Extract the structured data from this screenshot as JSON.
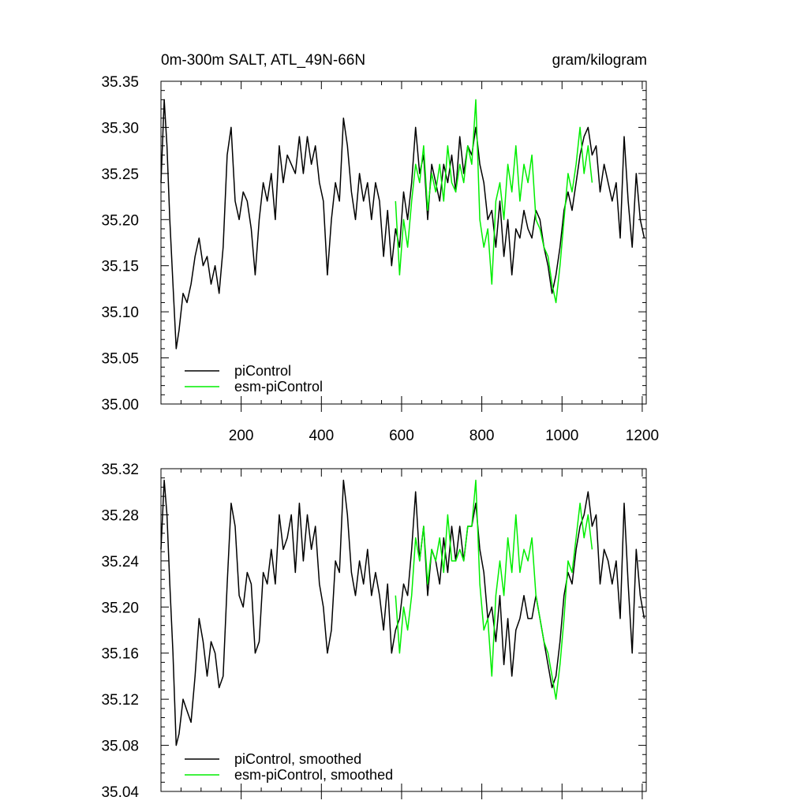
{
  "chart_data": [
    {
      "type": "line",
      "title_left": "0m-300m SALT, ATL_49N-66N",
      "title_right": "gram/kilogram",
      "xlim": [
        0,
        1210
      ],
      "ylim": [
        35.0,
        35.35
      ],
      "x_ticks": [
        200,
        400,
        600,
        800,
        1000,
        1200
      ],
      "y_ticks": [
        "35.00",
        "35.05",
        "35.10",
        "35.15",
        "35.20",
        "35.25",
        "35.30",
        "35.35"
      ],
      "legend_position": "bottom-left",
      "series": [
        {
          "name": "piControl",
          "color": "#000000",
          "x": [
            0,
            8,
            15,
            22,
            30,
            38,
            45,
            55,
            65,
            75,
            85,
            95,
            105,
            115,
            125,
            135,
            145,
            155,
            165,
            175,
            185,
            195,
            205,
            215,
            225,
            235,
            245,
            255,
            265,
            275,
            285,
            295,
            305,
            315,
            325,
            335,
            345,
            355,
            365,
            375,
            385,
            395,
            405,
            415,
            425,
            435,
            445,
            455,
            465,
            475,
            485,
            495,
            505,
            515,
            525,
            535,
            545,
            555,
            565,
            575,
            585,
            595,
            605,
            615,
            625,
            635,
            645,
            655,
            665,
            675,
            685,
            695,
            705,
            715,
            725,
            735,
            745,
            755,
            765,
            775,
            785,
            795,
            805,
            815,
            825,
            835,
            845,
            855,
            865,
            875,
            885,
            895,
            905,
            915,
            925,
            935,
            945,
            955,
            965,
            975,
            985,
            995,
            1005,
            1015,
            1025,
            1035,
            1045,
            1055,
            1065,
            1075,
            1085,
            1095,
            1105,
            1115,
            1125,
            1135,
            1145,
            1155,
            1165,
            1175,
            1185,
            1195,
            1205
          ],
          "values": [
            35.24,
            35.33,
            35.28,
            35.2,
            35.13,
            35.06,
            35.08,
            35.12,
            35.11,
            35.13,
            35.16,
            35.18,
            35.15,
            35.16,
            35.13,
            35.15,
            35.12,
            35.17,
            35.27,
            35.3,
            35.22,
            35.2,
            35.23,
            35.22,
            35.19,
            35.14,
            35.2,
            35.24,
            35.22,
            35.25,
            35.2,
            35.28,
            35.24,
            35.27,
            35.26,
            35.25,
            35.29,
            35.25,
            35.29,
            35.26,
            35.28,
            35.24,
            35.22,
            35.14,
            35.2,
            35.24,
            35.22,
            35.31,
            35.28,
            35.23,
            35.2,
            35.25,
            35.22,
            35.24,
            35.2,
            35.24,
            35.22,
            35.16,
            35.21,
            35.15,
            35.19,
            35.17,
            35.23,
            35.2,
            35.24,
            35.3,
            35.25,
            35.27,
            35.2,
            35.26,
            35.24,
            35.22,
            35.26,
            35.24,
            35.27,
            35.23,
            35.29,
            35.25,
            35.28,
            35.27,
            35.3,
            35.26,
            35.24,
            35.2,
            35.21,
            35.17,
            35.22,
            35.16,
            35.2,
            35.14,
            35.19,
            35.18,
            35.21,
            35.19,
            35.18,
            35.21,
            35.2,
            35.17,
            35.15,
            35.12,
            35.14,
            35.17,
            35.21,
            35.23,
            35.21,
            35.24,
            35.27,
            35.29,
            35.3,
            35.27,
            35.28,
            35.23,
            35.26,
            35.24,
            35.22,
            35.24,
            35.18,
            35.29,
            35.22,
            35.17,
            35.25,
            35.2,
            35.18
          ]
        },
        {
          "name": "esm-piControl",
          "color": "#00ee00",
          "x": [
            585,
            595,
            605,
            615,
            625,
            635,
            645,
            655,
            665,
            675,
            685,
            695,
            705,
            715,
            725,
            735,
            745,
            755,
            765,
            775,
            785,
            795,
            805,
            815,
            825,
            835,
            845,
            855,
            865,
            875,
            885,
            895,
            905,
            915,
            925,
            935,
            945,
            955,
            965,
            975,
            985,
            995,
            1005,
            1015,
            1025,
            1035,
            1045,
            1055,
            1065,
            1075
          ],
          "values": [
            35.22,
            35.14,
            35.2,
            35.17,
            35.22,
            35.26,
            35.24,
            35.28,
            35.21,
            35.25,
            35.23,
            35.26,
            35.22,
            35.28,
            35.24,
            35.23,
            35.26,
            35.24,
            35.28,
            35.26,
            35.33,
            35.2,
            35.17,
            35.19,
            35.13,
            35.22,
            35.24,
            35.2,
            35.26,
            35.23,
            35.28,
            35.22,
            35.26,
            35.24,
            35.27,
            35.2,
            35.19,
            35.17,
            35.16,
            35.13,
            35.11,
            35.15,
            35.2,
            35.25,
            35.23,
            35.26,
            35.3,
            35.25,
            35.28,
            35.24
          ]
        }
      ]
    },
    {
      "type": "line",
      "xlim": [
        0,
        1210
      ],
      "ylim": [
        35.04,
        35.32
      ],
      "x_ticks": [
        200,
        400,
        600,
        800,
        1000,
        1200
      ],
      "y_ticks": [
        "35.04",
        "35.08",
        "35.12",
        "35.16",
        "35.20",
        "35.24",
        "35.28",
        "35.32"
      ],
      "legend_position": "bottom-left",
      "series": [
        {
          "name": "piControl, smoothed",
          "color": "#000000",
          "x": [
            0,
            8,
            15,
            22,
            30,
            38,
            45,
            55,
            65,
            75,
            85,
            95,
            105,
            115,
            125,
            135,
            145,
            155,
            165,
            175,
            185,
            195,
            205,
            215,
            225,
            235,
            245,
            255,
            265,
            275,
            285,
            295,
            305,
            315,
            325,
            335,
            345,
            355,
            365,
            375,
            385,
            395,
            405,
            415,
            425,
            435,
            445,
            455,
            465,
            475,
            485,
            495,
            505,
            515,
            525,
            535,
            545,
            555,
            565,
            575,
            585,
            595,
            605,
            615,
            625,
            635,
            645,
            655,
            665,
            675,
            685,
            695,
            705,
            715,
            725,
            735,
            745,
            755,
            765,
            775,
            785,
            795,
            805,
            815,
            825,
            835,
            845,
            855,
            865,
            875,
            885,
            895,
            905,
            915,
            925,
            935,
            945,
            955,
            965,
            975,
            985,
            995,
            1005,
            1015,
            1025,
            1035,
            1045,
            1055,
            1065,
            1075,
            1085,
            1095,
            1105,
            1115,
            1125,
            1135,
            1145,
            1155,
            1165,
            1175,
            1185,
            1195,
            1205
          ],
          "values": [
            35.25,
            35.31,
            35.28,
            35.22,
            35.16,
            35.08,
            35.09,
            35.12,
            35.11,
            35.1,
            35.14,
            35.19,
            35.17,
            35.14,
            35.17,
            35.16,
            35.13,
            35.14,
            35.22,
            35.29,
            35.27,
            35.21,
            35.2,
            35.23,
            35.22,
            35.16,
            35.17,
            35.23,
            35.22,
            35.25,
            35.22,
            35.28,
            35.25,
            35.26,
            35.28,
            35.23,
            35.29,
            35.24,
            35.28,
            35.25,
            35.27,
            35.22,
            35.2,
            35.16,
            35.18,
            35.24,
            35.23,
            35.31,
            35.28,
            35.23,
            35.21,
            35.24,
            35.22,
            35.25,
            35.21,
            35.23,
            35.21,
            35.18,
            35.22,
            35.16,
            35.18,
            35.19,
            35.22,
            35.21,
            35.25,
            35.3,
            35.24,
            35.27,
            35.21,
            35.25,
            35.24,
            35.22,
            35.26,
            35.23,
            35.27,
            35.24,
            35.27,
            35.24,
            35.27,
            35.27,
            35.29,
            35.25,
            35.23,
            35.19,
            35.2,
            35.17,
            35.21,
            35.15,
            35.19,
            35.14,
            35.18,
            35.19,
            35.21,
            35.19,
            35.19,
            35.21,
            35.19,
            35.17,
            35.15,
            35.13,
            35.14,
            35.17,
            35.21,
            35.23,
            35.22,
            35.25,
            35.27,
            35.28,
            35.3,
            35.27,
            35.28,
            35.22,
            35.25,
            35.24,
            35.22,
            35.24,
            35.19,
            35.29,
            35.22,
            35.16,
            35.25,
            35.21,
            35.19
          ]
        },
        {
          "name": "esm-piControl, smoothed",
          "color": "#00ee00",
          "x": [
            585,
            595,
            605,
            615,
            625,
            635,
            645,
            655,
            665,
            675,
            685,
            695,
            705,
            715,
            725,
            735,
            745,
            755,
            765,
            775,
            785,
            795,
            805,
            815,
            825,
            835,
            845,
            855,
            865,
            875,
            885,
            895,
            905,
            915,
            925,
            935,
            945,
            955,
            965,
            975,
            985,
            995,
            1005,
            1015,
            1025,
            1035,
            1045,
            1055,
            1065,
            1075
          ],
          "values": [
            35.21,
            35.16,
            35.2,
            35.18,
            35.21,
            35.26,
            35.24,
            35.27,
            35.22,
            35.25,
            35.24,
            35.26,
            35.23,
            35.28,
            35.24,
            35.24,
            35.25,
            35.24,
            35.27,
            35.27,
            35.31,
            35.22,
            35.18,
            35.19,
            35.14,
            35.21,
            35.24,
            35.21,
            35.26,
            35.23,
            35.28,
            35.23,
            35.25,
            35.24,
            35.26,
            35.21,
            35.19,
            35.17,
            35.16,
            35.14,
            35.12,
            35.15,
            35.19,
            35.24,
            35.23,
            35.26,
            35.29,
            35.26,
            35.28,
            35.25
          ]
        }
      ]
    }
  ]
}
